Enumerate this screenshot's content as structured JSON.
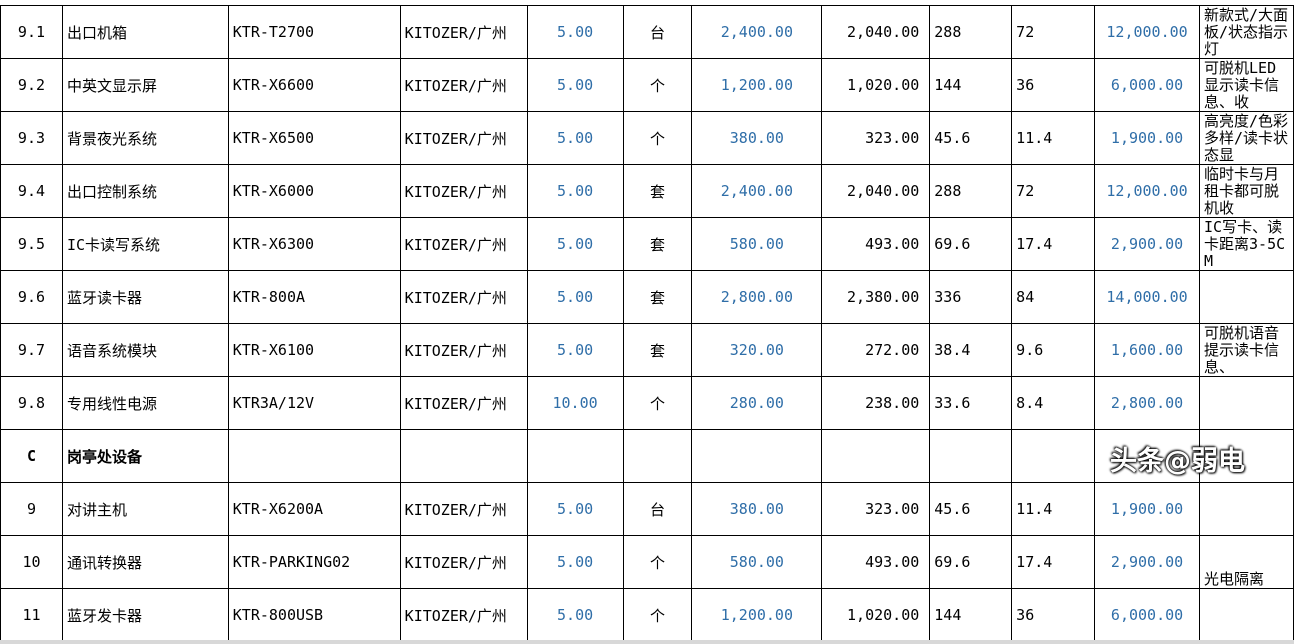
{
  "rows": [
    {
      "no": "9.1",
      "name": "出口机箱",
      "model": "KTR-T2700",
      "brand": "KITOZER/广州",
      "qty": "5.00",
      "unit": "台",
      "price": "2,400.00",
      "cost": "2,040.00",
      "a": "288",
      "b": "72",
      "total": "12,000.00",
      "note": "新款式/大面板/状态指示灯"
    },
    {
      "no": "9.2",
      "name": "中英文显示屏",
      "model": "KTR-X6600",
      "brand": "KITOZER/广州",
      "qty": "5.00",
      "unit": "个",
      "price": "1,200.00",
      "cost": "1,020.00",
      "a": "144",
      "b": "36",
      "total": "6,000.00",
      "note": "可脱机LED显示读卡信息、收"
    },
    {
      "no": "9.3",
      "name": "背景夜光系统",
      "model": "KTR-X6500",
      "brand": "KITOZER/广州",
      "qty": "5.00",
      "unit": "个",
      "price": "380.00",
      "cost": "323.00",
      "a": "45.6",
      "b": "11.4",
      "total": "1,900.00",
      "note": "高亮度/色彩多样/读卡状态显"
    },
    {
      "no": "9.4",
      "name": "出口控制系统",
      "model": "KTR-X6000",
      "brand": "KITOZER/广州",
      "qty": "5.00",
      "unit": "套",
      "price": "2,400.00",
      "cost": "2,040.00",
      "a": "288",
      "b": "72",
      "total": "12,000.00",
      "note": "临时卡与月租卡都可脱机收"
    },
    {
      "no": "9.5",
      "name": "IC卡读写系统",
      "model": "KTR-X6300",
      "brand": "KITOZER/广州",
      "qty": "5.00",
      "unit": "套",
      "price": "580.00",
      "cost": "493.00",
      "a": "69.6",
      "b": "17.4",
      "total": "2,900.00",
      "note": "IC写卡、读卡距离3-5CM"
    },
    {
      "no": "9.6",
      "name": "蓝牙读卡器",
      "model": "KTR-800A",
      "brand": "KITOZER/广州",
      "qty": "5.00",
      "unit": "套",
      "price": "2,800.00",
      "cost": "2,380.00",
      "a": "336",
      "b": "84",
      "total": "14,000.00",
      "note": ""
    },
    {
      "no": "9.7",
      "name": "语音系统模块",
      "model": "KTR-X6100",
      "brand": "KITOZER/广州",
      "qty": "5.00",
      "unit": "套",
      "price": "320.00",
      "cost": "272.00",
      "a": "38.4",
      "b": "9.6",
      "total": "1,600.00",
      "note": "可脱机语音提示读卡信息、"
    },
    {
      "no": "9.8",
      "name": "专用线性电源",
      "model": "KTR3A/12V",
      "brand": "KITOZER/广州",
      "qty": "10.00",
      "unit": "个",
      "price": "280.00",
      "cost": "238.00",
      "a": "33.6",
      "b": "8.4",
      "total": "2,800.00",
      "note": ""
    },
    {
      "no": "C",
      "name": "岗亭处设备",
      "model": "",
      "brand": "",
      "qty": "",
      "unit": "",
      "price": "",
      "cost": "",
      "a": "",
      "b": "",
      "total": "",
      "note": "",
      "section": true
    },
    {
      "no": "9",
      "name": "对讲主机",
      "model": "KTR-X6200A",
      "brand": "KITOZER/广州",
      "qty": "5.00",
      "unit": "台",
      "price": "380.00",
      "cost": "323.00",
      "a": "45.6",
      "b": "11.4",
      "total": "1,900.00",
      "note": ""
    },
    {
      "no": "10",
      "name": "通讯转换器",
      "model": "KTR-PARKING02",
      "brand": "KITOZER/广州",
      "qty": "5.00",
      "unit": "个",
      "price": "580.00",
      "cost": "493.00",
      "a": "69.6",
      "b": "17.4",
      "total": "2,900.00",
      "note": "光电隔离"
    },
    {
      "no": "11",
      "name": "蓝牙发卡器",
      "model": "KTR-800USB",
      "brand": "KITOZER/广州",
      "qty": "5.00",
      "unit": "个",
      "price": "1,200.00",
      "cost": "1,020.00",
      "a": "144",
      "b": "36",
      "total": "6,000.00",
      "note": ""
    }
  ],
  "watermark": "头条@弱电",
  "colors": {
    "number_blue": "#2f6ea8",
    "grid": "#000000"
  }
}
